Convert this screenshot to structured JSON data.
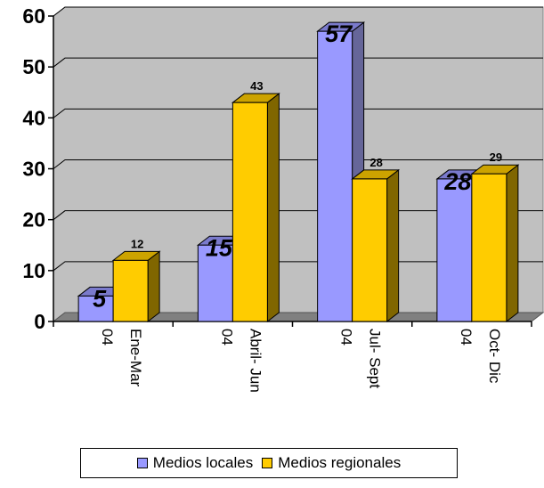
{
  "chart_data": {
    "type": "bar",
    "categories": [
      {
        "line1": "Ene-Mar",
        "line2": "04"
      },
      {
        "line1": "Abril- Jun",
        "line2": "04"
      },
      {
        "line1": "Jul- Sept",
        "line2": "04"
      },
      {
        "line1": "Oct- Dic",
        "line2": "04"
      }
    ],
    "series": [
      {
        "name": "Medios locales",
        "values": [
          5,
          15,
          57,
          28
        ],
        "color": "#9999ff",
        "label_style": "large"
      },
      {
        "name": "Medios regionales",
        "values": [
          12,
          43,
          28,
          29
        ],
        "color": "#ffcc00",
        "label_style": "small"
      }
    ],
    "ylim": [
      0,
      60
    ],
    "yticks": [
      0,
      10,
      20,
      30,
      40,
      50,
      60
    ],
    "grid": true,
    "three_d": true,
    "legend_position": "bottom",
    "wall_color": "#c0c0c0",
    "side_shade_colors": [
      "#666699",
      "#806600"
    ]
  }
}
